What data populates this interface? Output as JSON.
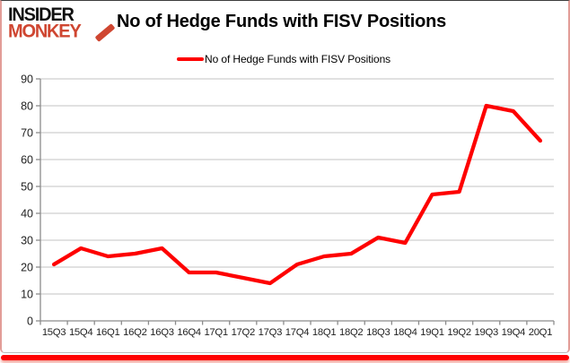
{
  "brand": {
    "line1": "INSIDER",
    "line2": "MONKEY"
  },
  "header": {
    "title": "No of Hedge Funds with FISV Positions"
  },
  "legend": {
    "label": "No of Hedge Funds with FISV Positions"
  },
  "colors": {
    "series": "#fe0000",
    "brand_accent": "#cf4631",
    "gridline": "#c3c3c3",
    "axis": "#8c8c8c",
    "tick_text": "#1f1f1f",
    "bottom_bar": "#fe0000"
  },
  "chart_data": {
    "type": "line",
    "title": "No of Hedge Funds with FISV Positions",
    "categories": [
      "15Q3",
      "15Q4",
      "16Q1",
      "16Q2",
      "16Q3",
      "16Q4",
      "17Q1",
      "17Q2",
      "17Q3",
      "17Q4",
      "18Q1",
      "18Q2",
      "18Q3",
      "18Q4",
      "19Q1",
      "19Q2",
      "19Q3",
      "19Q4",
      "20Q1"
    ],
    "series": [
      {
        "name": "No of Hedge Funds with FISV Positions",
        "values": [
          21,
          27,
          24,
          25,
          27,
          18,
          18,
          16,
          14,
          21,
          24,
          25,
          31,
          29,
          47,
          48,
          80,
          78,
          67
        ]
      }
    ],
    "xlabel": "",
    "ylabel": "",
    "ylim": [
      0,
      90
    ],
    "yticks": [
      0,
      10,
      20,
      30,
      40,
      50,
      60,
      70,
      80,
      90
    ],
    "grid": true,
    "legend_position": "top-center"
  }
}
